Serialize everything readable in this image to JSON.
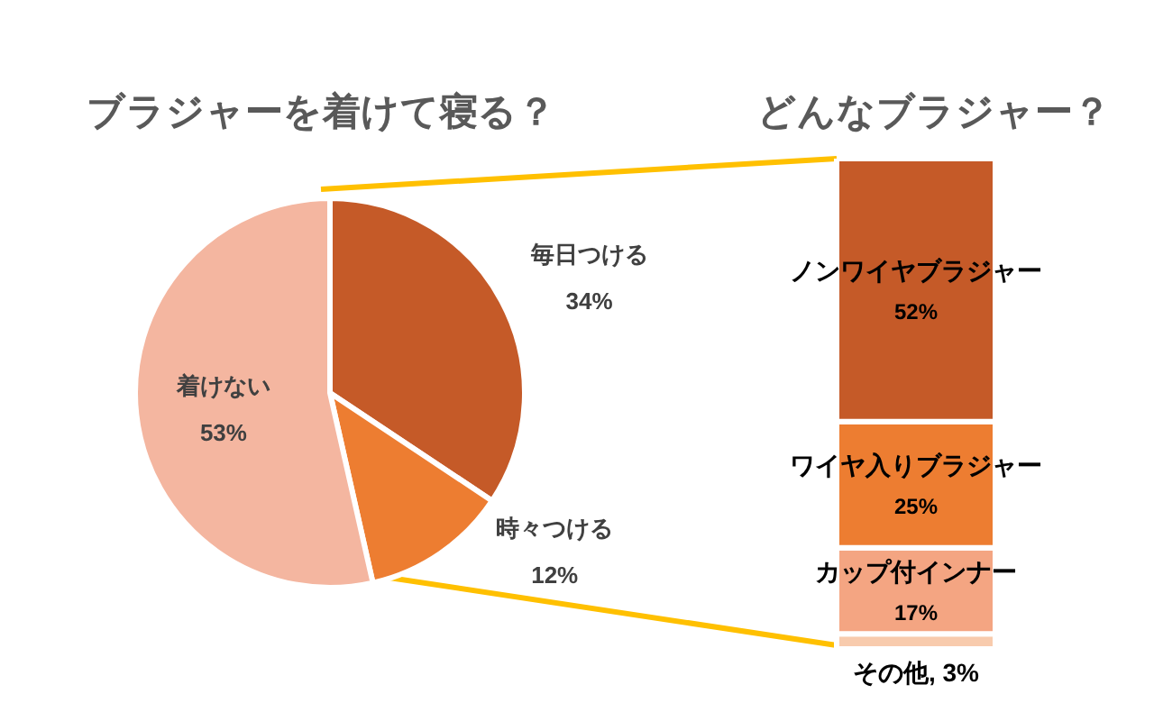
{
  "chart_data": [
    {
      "type": "pie",
      "title": "ブラジャーを着けて寝る？",
      "categories": [
        "毎日つける",
        "時々つける",
        "着けない"
      ],
      "values": [
        34,
        12,
        53
      ],
      "colors": [
        "#c55a28",
        "#ed7d31",
        "#f4b6a0"
      ],
      "value_labels": [
        "34%",
        "12%",
        "53%"
      ]
    },
    {
      "type": "bar",
      "stacked": true,
      "title": "どんなブラジャー？",
      "categories": [
        null
      ],
      "series": [
        {
          "color": "#f8cbad",
          "values": [
            3
          ],
          "value_labels": [
            "その他, 3%"
          ]
        },
        {
          "name": "カップ付インナー",
          "color": "#f4a582",
          "values": [
            17
          ],
          "value_labels": [
            "17%"
          ]
        },
        {
          "name": "ワイヤ入りブラジャー",
          "color": "#ed7d31",
          "values": [
            25
          ],
          "value_labels": [
            "25%"
          ]
        },
        {
          "name": "ノンワイヤブラジャー",
          "color": "#c55a28",
          "values": [
            52
          ],
          "value_labels": [
            "52%"
          ]
        }
      ]
    }
  ]
}
